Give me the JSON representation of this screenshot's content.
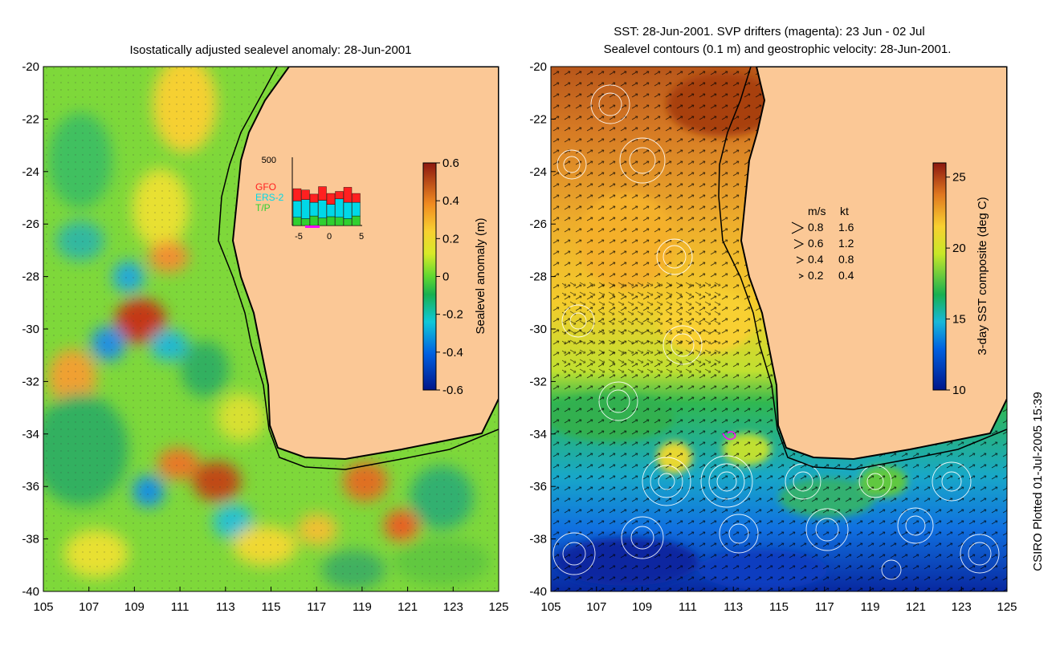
{
  "left_panel": {
    "title": "Isostatically adjusted sealevel anomaly: 28-Jun-2001",
    "colorbar": {
      "label": "Sealevel anomaly (m)",
      "ticks": [
        "0.6",
        "0.4",
        "0.2",
        "0",
        "-0.2",
        "-0.4",
        "-0.6"
      ],
      "range": [
        -0.6,
        0.6
      ]
    },
    "inset": {
      "ymax_label": "500",
      "legend": [
        {
          "name": "GFO",
          "color": "#ff2020"
        },
        {
          "name": "ERS-2",
          "color": "#00d8e8"
        },
        {
          "name": "T/P",
          "color": "#30d030"
        }
      ],
      "x_ticks": [
        "-5",
        "0",
        "5"
      ],
      "bars": [
        {
          "tp": 60,
          "ers": 120,
          "gfo": 90
        },
        {
          "tp": 50,
          "ers": 140,
          "gfo": 70
        },
        {
          "tp": 70,
          "ers": 100,
          "gfo": 60
        },
        {
          "tp": 55,
          "ers": 130,
          "gfo": 100
        },
        {
          "tp": 65,
          "ers": 90,
          "gfo": 80
        },
        {
          "tp": 60,
          "ers": 135,
          "gfo": 55
        },
        {
          "tp": 50,
          "ers": 120,
          "gfo": 110
        },
        {
          "tp": 70,
          "ers": 100,
          "gfo": 65
        }
      ]
    }
  },
  "right_panel": {
    "title_line1": "SST: 28-Jun-2001. SVP drifters (magenta): 23 Jun - 02 Jul",
    "title_line2": "Sealevel contours (0.1 m) and geostrophic velocity: 28-Jun-2001.",
    "colorbar": {
      "label": "3-day SST composite (deg C)",
      "ticks": [
        "25",
        "20",
        "15",
        "10"
      ],
      "range": [
        10,
        26
      ]
    },
    "velocity_legend": {
      "header_ms": "m/s",
      "header_kt": "kt",
      "rows": [
        {
          "ms": "0.8",
          "kt": "1.6"
        },
        {
          "ms": "0.6",
          "kt": "1.2"
        },
        {
          "ms": "0.4",
          "kt": "0.8"
        },
        {
          "ms": "0.2",
          "kt": "0.4"
        }
      ]
    }
  },
  "axes": {
    "lat_labels": [
      "-20",
      "-22",
      "-24",
      "-26",
      "-28",
      "-30",
      "-32",
      "-34",
      "-36",
      "-38",
      "-40"
    ],
    "lon_labels": [
      "105",
      "107",
      "109",
      "111",
      "113",
      "115",
      "117",
      "119",
      "121",
      "123",
      "125"
    ],
    "lat_range": [
      -40,
      -20
    ],
    "lon_range": [
      105,
      125
    ]
  },
  "footer": {
    "credit": "CSIRO Plotted 01-Jul-2005 15:39"
  },
  "colors": {
    "land": "#fbc896",
    "coast": "#000000",
    "contour": "#ffffff",
    "drifter": "#ff00ff"
  }
}
